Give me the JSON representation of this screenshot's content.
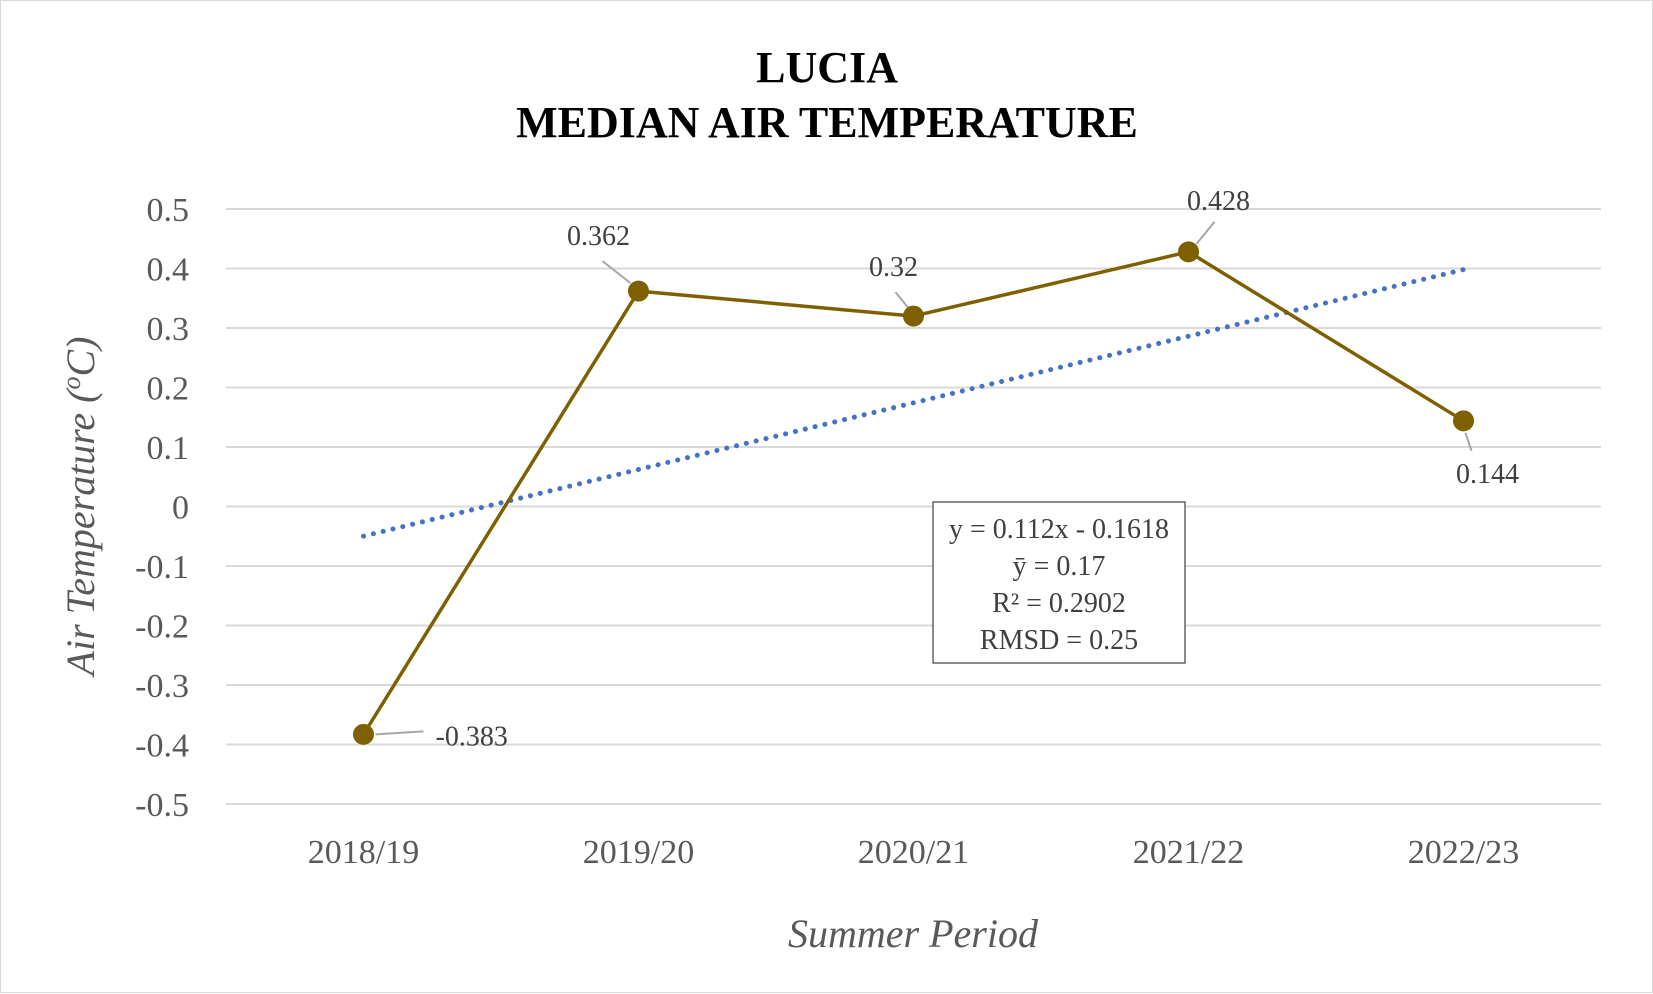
{
  "chart_data": {
    "type": "line",
    "title": [
      "LUCIA",
      "MEDIAN AIR TEMPERATURE"
    ],
    "xlabel": "Summer Period",
    "ylabel_prefix": "Air Temperature (",
    "ylabel_sup": "o",
    "ylabel_suffix": "C)",
    "categories": [
      "2018/19",
      "2019/20",
      "2020/21",
      "2021/22",
      "2022/23"
    ],
    "series": [
      {
        "values": [
          -0.383,
          0.362,
          0.32,
          0.428,
          0.144
        ],
        "data_labels": [
          "-0.383",
          "0.362",
          "0.32",
          "0.428",
          "0.144"
        ],
        "color": "#7f6000"
      }
    ],
    "trendline": {
      "type": "linear",
      "slope": 0.112,
      "intercept": -0.1618,
      "color": "#4472c4",
      "style": "dotted"
    },
    "equation_box": [
      "y = 0.112x - 0.1618",
      "ȳ = 0.17",
      "R² = 0.2902",
      "RMSD = 0.25"
    ],
    "ylim": [
      -0.5,
      0.5
    ],
    "ytick_step": 0.1,
    "yticks": [
      "0.5",
      "0.4",
      "0.3",
      "0.2",
      "0.1",
      "0",
      "-0.1",
      "-0.2",
      "-0.3",
      "-0.4",
      "-0.5"
    ],
    "grid": true,
    "legend": "none",
    "gridline_color": "#d9d9d9"
  }
}
